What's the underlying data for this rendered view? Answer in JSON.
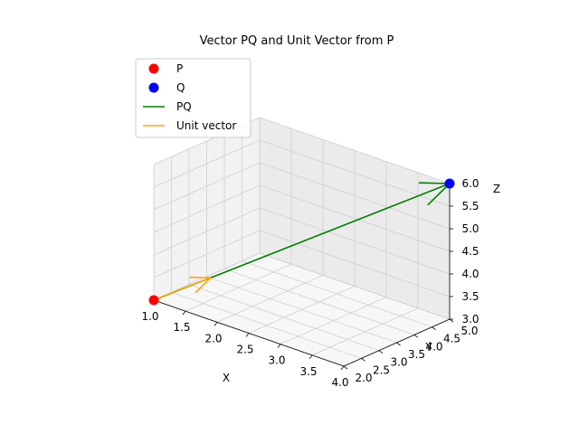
{
  "chart_data": {
    "type": "scatter",
    "title": "Vector PQ and Unit Vector from P",
    "xlabel": "X",
    "ylabel": "Y",
    "zlabel": "Z",
    "projection": "3d",
    "xlim": [
      1,
      4
    ],
    "ylim": [
      2,
      5
    ],
    "zlim": [
      3,
      6
    ],
    "xticks": [
      "1.0",
      "1.5",
      "2.0",
      "2.5",
      "3.0",
      "3.5",
      "4.0"
    ],
    "yticks": [
      "2.0",
      "2.5",
      "3.0",
      "3.5",
      "4.0",
      "4.5",
      "5.0"
    ],
    "zticks": [
      "3.0",
      "3.5",
      "4.0",
      "4.5",
      "5.0",
      "5.5",
      "6.0"
    ],
    "grid": true,
    "legend_position": "top-left",
    "points": [
      {
        "name": "P",
        "x": 1,
        "y": 2,
        "z": 3,
        "color": "#ff0000"
      },
      {
        "name": "Q",
        "x": 4,
        "y": 5,
        "z": 6,
        "color": "#0000ff"
      }
    ],
    "vectors": [
      {
        "name": "PQ",
        "from": [
          1,
          2,
          3
        ],
        "to": [
          4,
          5,
          6
        ],
        "color": "#008000"
      },
      {
        "name": "Unit vector",
        "from": [
          1,
          2,
          3
        ],
        "to": [
          1.577,
          2.577,
          3.577
        ],
        "color": "#ffa500"
      }
    ],
    "legend": [
      {
        "label": "P",
        "kind": "marker",
        "color": "#ff0000"
      },
      {
        "label": "Q",
        "kind": "marker",
        "color": "#0000ff"
      },
      {
        "label": "PQ",
        "kind": "line",
        "color": "#008000"
      },
      {
        "label": "Unit vector",
        "kind": "line",
        "color": "#ffa500"
      }
    ]
  }
}
